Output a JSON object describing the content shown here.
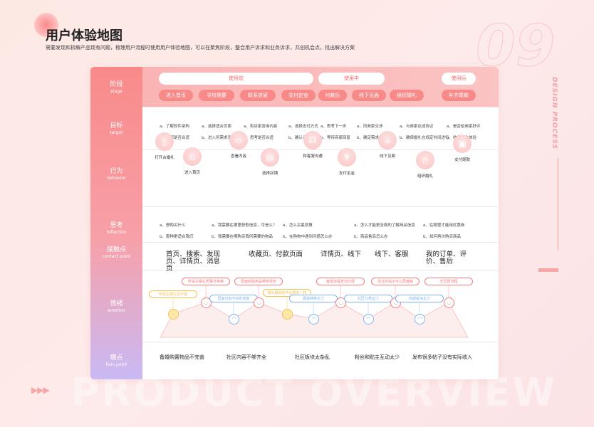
{
  "header": {
    "title": "用户体验地图",
    "subtitle": "需要发现和拆解产品现有问题，梳理用户流程时使用用户体验地图，可以在聚焦阶段，整合用户诉求和业务诉求，共创机会点，找出解决方案",
    "number": "09",
    "side_text": "DESIGN PROCESS",
    "watermark": "PRODUCT OVERVIEW",
    "arrows": "▶▶▶"
  },
  "rows": [
    {
      "cn": "阶段",
      "en": "stage"
    },
    {
      "cn": "目标",
      "en": "target"
    },
    {
      "cn": "行为",
      "en": "behavior"
    },
    {
      "cn": "思考",
      "en": "reflection"
    },
    {
      "cn": "接触点",
      "en": "contact point"
    },
    {
      "cn": "情绪",
      "en": "emotion"
    },
    {
      "cn": "痛点",
      "en": "Pain point"
    }
  ],
  "stages": [
    "使用前",
    "使用中",
    "使用后"
  ],
  "steps": [
    "进入首页",
    "寻找需要",
    "联系店家",
    "支付定金",
    "付款后",
    "线下见面",
    "组织婚礼",
    "补齐尾款"
  ],
  "targets": [
    [
      "a、了解软件架构",
      "b、了解是否合适"
    ],
    [
      "a、选择适合页面",
      "b、进入所需求页面"
    ],
    [
      "a、和店家咨询内容",
      "b、思考是否合适"
    ],
    [
      "a、选择支付方式",
      "b、确认订单"
    ],
    [
      "a、思考下一步",
      "b、等待商家回复"
    ],
    [
      "a、同商家交涉",
      "b、确定需求"
    ],
    [
      "a、与商家达成协议",
      "b、确保婚礼在规定时间进行"
    ],
    [
      "a、是否给商家好评",
      "b、收集用户体验"
    ]
  ],
  "behaviors": [
    {
      "label": "打开古婚礼",
      "icon": "phone-icon",
      "glyph": "▯"
    },
    {
      "label": "进入首页",
      "icon": "home-icon",
      "glyph": "⌂"
    },
    {
      "label": "查看内容",
      "icon": "book-icon",
      "glyph": "▭"
    },
    {
      "label": "选择店铺",
      "icon": "store-icon",
      "glyph": "▤"
    },
    {
      "label": "和客服沟通",
      "icon": "headset-icon",
      "glyph": "☊"
    },
    {
      "label": "支付定金",
      "icon": "yuan-icon",
      "glyph": "¥"
    },
    {
      "label": "线下见面",
      "icon": "cup-icon",
      "glyph": "☕"
    },
    {
      "label": "组织婚礼",
      "icon": "arch-icon",
      "glyph": "∩"
    },
    {
      "label": "支付尾款",
      "icon": "wallet-icon",
      "glyph": "▣"
    }
  ],
  "reflections": [
    [
      "a、想购买什么",
      "b、那种更适合我们"
    ],
    [
      "a、我需要在哪里获取信息，可信么？",
      "b、我需要在哪购买我所需要的物品"
    ],
    [
      "a、怎么买最划算",
      "b、在购物中遇到问题怎么办"
    ],
    [
      "a、怎么才能更全面的了解商品信息",
      "b、商品售后怎么办"
    ],
    [
      "a、在哪里才能用优惠券",
      "b、如何再次购买商品"
    ]
  ],
  "contacts": [
    "首页、搜索、发现页、详情页、消息页",
    "收藏页、付款页面",
    "详情页、线下",
    "线下、客服",
    "我的订单、评价、售后"
  ],
  "emotions": [
    {
      "mood": "neutral",
      "label": "听说古婚礼还不错"
    },
    {
      "mood": "happy",
      "label": "听说古婚礼质量非常棒"
    },
    {
      "mood": "sad",
      "label": "里面也有不好的商家"
    },
    {
      "mood": "happy",
      "label": "里面结婚用品种类很全"
    },
    {
      "mood": "neutral",
      "label": "婚车跟其他平台基本一样"
    },
    {
      "mood": "sad",
      "label": "婚戒种类太少"
    },
    {
      "mood": "happy",
      "label": "备婚流程查询方便"
    },
    {
      "mood": "sad",
      "label": "社区分类太少"
    },
    {
      "mood": "happy",
      "label": "发过的帖子可以再编辑"
    },
    {
      "mood": "sad",
      "label": "商城板块太少"
    },
    {
      "mood": "happy",
      "label": "交互很流程"
    }
  ],
  "pains": [
    "备婚购置物品不完善",
    "社区内容不够齐全",
    "社区板块太杂乱",
    "粉丝和贴主互动太少",
    "发布很多帖子没有实际收入"
  ],
  "colors": {
    "accent": "#f88989",
    "happy": "#f47c7c",
    "sad": "#7fb2ef",
    "neutral": "#f2c04d"
  }
}
